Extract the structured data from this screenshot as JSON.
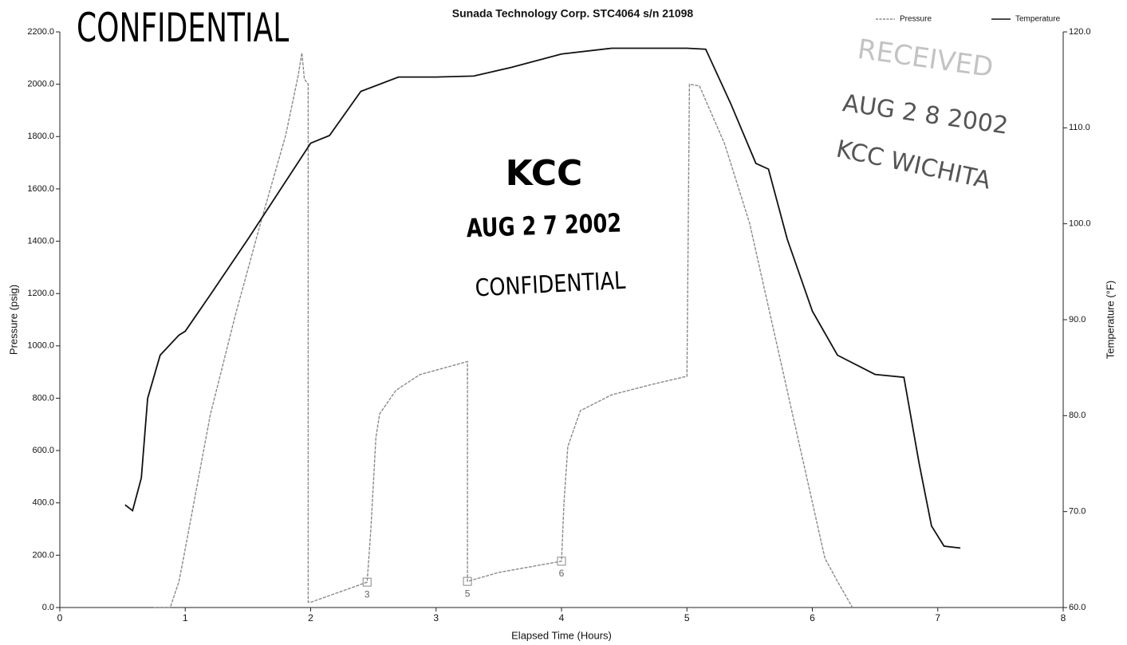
{
  "chart_data": {
    "type": "line",
    "title": "Sunada Technology Corp. STC4064 s/n 21098",
    "xlabel": "Elapsed Time (Hours)",
    "ylabel": "Pressure (psig)",
    "y2label": "Temperature (°F)",
    "xlim": [
      0,
      8
    ],
    "xticks": [
      0,
      1,
      2,
      3,
      4,
      5,
      6,
      7,
      8
    ],
    "ylim": [
      0,
      2200
    ],
    "yticks": [
      {
        "value": 0,
        "label": "0.0"
      },
      {
        "value": 200,
        "label": "200.0"
      },
      {
        "value": 400,
        "label": "400.0"
      },
      {
        "value": 600,
        "label": "600.0"
      },
      {
        "value": 800,
        "label": "800.0"
      },
      {
        "value": 1000,
        "label": "1000.0"
      },
      {
        "value": 1200,
        "label": "1200.0"
      },
      {
        "value": 1400,
        "label": "1400.0"
      },
      {
        "value": 1600,
        "label": "1600.0"
      },
      {
        "value": 1800,
        "label": "1800.0"
      },
      {
        "value": 2000,
        "label": "2000.0"
      },
      {
        "value": 2200,
        "label": "2200.0"
      }
    ],
    "y2lim": [
      60,
      120
    ],
    "y2ticks": [
      {
        "value": 60,
        "label": "60.0"
      },
      {
        "value": 70,
        "label": "70.0"
      },
      {
        "value": 80,
        "label": "80.0"
      },
      {
        "value": 90,
        "label": "90.0"
      },
      {
        "value": 100,
        "label": "100.0"
      },
      {
        "value": 110,
        "label": "110.0"
      },
      {
        "value": 120,
        "label": "120.0"
      }
    ],
    "legend": "top-right",
    "series": [
      {
        "name": "Pressure",
        "color": "#8a8a8a",
        "x": [
          0.75,
          0.88,
          0.95,
          1.0,
          1.2,
          1.4,
          1.6,
          1.8,
          1.9,
          1.93,
          1.95,
          1.98,
          1.98,
          2.0,
          2.45,
          2.48,
          2.52,
          2.55,
          2.68,
          2.87,
          3.06,
          3.25,
          3.25,
          3.5,
          4.0,
          4.02,
          4.05,
          4.15,
          4.4,
          4.7,
          5.0,
          5.02,
          5.1,
          5.3,
          5.5,
          5.7,
          5.9,
          6.1,
          6.2,
          6.32
        ],
        "values": [
          0,
          0,
          100,
          225,
          737,
          1118,
          1468,
          1804,
          2032,
          2120,
          2020,
          2000,
          20,
          20,
          97,
          300,
          650,
          740,
          830,
          890,
          915,
          940,
          100,
          134,
          177,
          400,
          615,
          752,
          813,
          850,
          884,
          2000,
          1993,
          1773,
          1468,
          1042,
          615,
          189,
          100,
          0
        ]
      },
      {
        "name": "Temperature",
        "color": "#111111",
        "axis": "y2",
        "x": [
          0.52,
          0.58,
          0.65,
          0.7,
          0.8,
          0.95,
          1.0,
          1.2,
          1.5,
          1.75,
          2.0,
          2.15,
          2.4,
          2.7,
          3.0,
          3.3,
          3.6,
          4.0,
          4.4,
          5.0,
          5.15,
          5.35,
          5.55,
          5.65,
          5.8,
          6.0,
          6.2,
          6.5,
          6.73,
          6.85,
          6.95,
          7.05,
          7.18
        ],
        "values": [
          70.7,
          70.1,
          73.5,
          81.8,
          86.3,
          88.4,
          88.8,
          92.6,
          98.4,
          103.4,
          108.4,
          109.2,
          113.8,
          115.3,
          115.3,
          115.4,
          116.3,
          117.7,
          118.3,
          118.3,
          118.2,
          112.5,
          106.3,
          105.7,
          98.4,
          90.9,
          86.3,
          84.3,
          84.0,
          75.1,
          68.5,
          66.4,
          66.2
        ]
      }
    ],
    "point_labels": [
      {
        "x": 2.45,
        "y": 97,
        "label": "3"
      },
      {
        "x": 3.25,
        "y": 100,
        "label": "5"
      },
      {
        "x": 4.0,
        "y": 177,
        "label": "6"
      }
    ],
    "annotations": [
      "CONFIDENTIAL",
      "KCC",
      "AUG 2 7 2002",
      "CONFIDENTIAL",
      "RECEIVED",
      "AUG 2 8 2002",
      "KCC WICHITA"
    ]
  }
}
